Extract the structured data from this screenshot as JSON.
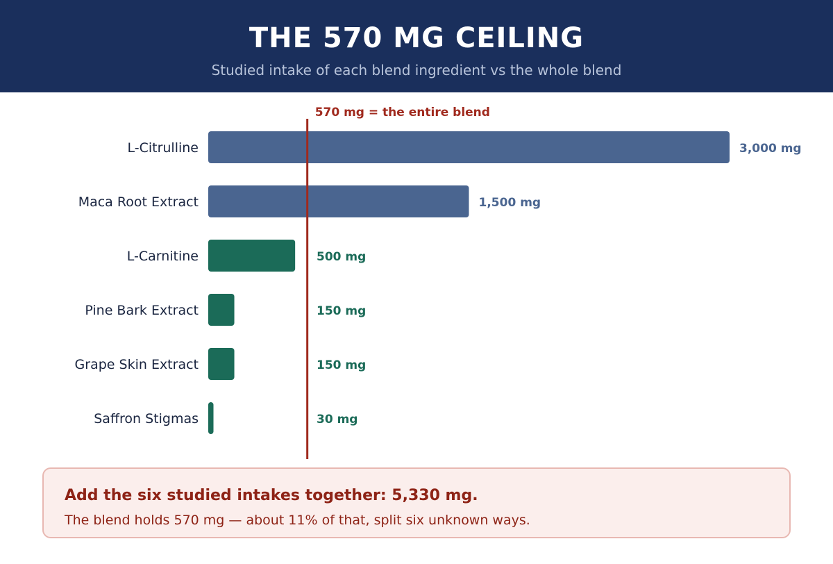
{
  "header": {
    "title": "THE 570 MG CEILING",
    "subtitle": "Studied intake of each blend ingredient vs the whole blend"
  },
  "chart_data": {
    "type": "bar",
    "orientation": "horizontal",
    "categories": [
      "L-Citrulline",
      "Maca Root Extract",
      "L-Carnitine",
      "Pine Bark Extract",
      "Grape Skin Extract",
      "Saffron Stigmas"
    ],
    "values": [
      3000,
      1500,
      500,
      150,
      150,
      30
    ],
    "value_labels": [
      "3,000 mg",
      "1,500 mg",
      "500 mg",
      "150 mg",
      "150 mg",
      "30 mg"
    ],
    "bar_colors": [
      "#4a6590",
      "#4a6590",
      "#1b6b58",
      "#1b6b58",
      "#1b6b58",
      "#1b6b58"
    ],
    "unit": "mg",
    "xlim": [
      0,
      3000
    ],
    "reference_line": {
      "value": 570,
      "label": "570 mg = the entire blend",
      "color": "#a02a1e"
    },
    "grid": false,
    "legend": "none"
  },
  "note": {
    "headline": "Add the six studied intakes together: 5,330 mg.",
    "body": "The blend holds 570 mg — about 11% of that, split six unknown ways."
  },
  "colors": {
    "header_bg": "#1a2f5c",
    "accent_red": "#a02a1e",
    "label_text": "#1a2540"
  }
}
